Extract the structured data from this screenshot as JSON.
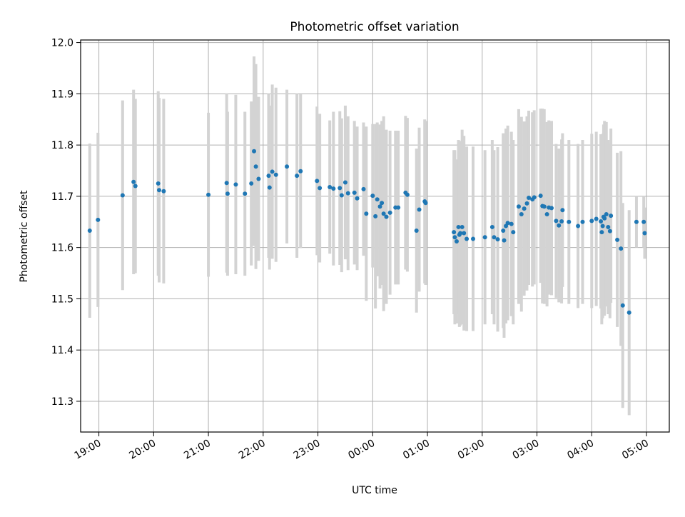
{
  "chart_data": {
    "type": "scatter",
    "title": "Photometric offset variation",
    "xlabel": "UTC time",
    "ylabel": "Photometric offset",
    "xlim": [
      "18:40",
      "05:25"
    ],
    "ylim": [
      11.24,
      12.005
    ],
    "x_ticks": [
      "19:00",
      "20:00",
      "21:00",
      "22:00",
      "23:00",
      "00:00",
      "01:00",
      "02:00",
      "03:00",
      "04:00",
      "05:00"
    ],
    "y_ticks": [
      11.3,
      11.4,
      11.5,
      11.6,
      11.7,
      11.8,
      11.9,
      12.0
    ],
    "grid": true,
    "point_color": "#1f77b4",
    "errorbar_color": "#d3d3d3",
    "series": [
      {
        "x": [
          "18:50",
          "18:59",
          "19:26",
          "19:38",
          "19:40",
          "20:05",
          "20:06",
          "20:11",
          "21:00",
          "21:20",
          "21:21",
          "21:30",
          "21:40",
          "21:47",
          "21:50",
          "21:52",
          "21:55",
          "22:06",
          "22:07",
          "22:10",
          "22:14",
          "22:26",
          "22:37",
          "22:41",
          "22:59",
          "23:02",
          "23:13",
          "23:17",
          "23:24",
          "23:26",
          "23:30",
          "23:33",
          "23:40",
          "23:43",
          "23:50",
          "23:53",
          "24:00",
          "24:03",
          "24:05",
          "24:08",
          "24:10",
          "24:12",
          "24:15",
          "24:19",
          "24:25",
          "24:28",
          "24:36",
          "24:38",
          "24:48",
          "24:51",
          "24:57",
          "24:58",
          "25:29",
          "25:30",
          "25:32",
          "25:34",
          "25:35",
          "25:36",
          "25:38",
          "25:40",
          "25:43",
          "25:50",
          "26:03",
          "26:11",
          "26:13",
          "26:17",
          "26:23",
          "26:24",
          "26:26",
          "26:28",
          "26:32",
          "26:34",
          "26:40",
          "26:43",
          "26:46",
          "26:49",
          "26:51",
          "26:55",
          "26:57",
          "27:04",
          "27:06",
          "27:08",
          "27:11",
          "27:13",
          "27:16",
          "27:21",
          "27:24",
          "27:27",
          "27:28",
          "27:35",
          "27:45",
          "27:50",
          "28:00",
          "28:05",
          "28:10",
          "28:11",
          "28:12",
          "28:13",
          "28:14",
          "28:16",
          "28:18",
          "28:20",
          "28:21",
          "28:28",
          "28:32",
          "28:34",
          "28:41",
          "28:49",
          "28:57",
          "28:58"
        ],
        "y": [
          11.633,
          11.654,
          11.702,
          11.728,
          11.72,
          11.725,
          11.712,
          11.71,
          11.703,
          11.726,
          11.705,
          11.723,
          11.705,
          11.725,
          11.788,
          11.758,
          11.734,
          11.74,
          11.717,
          11.748,
          11.742,
          11.758,
          11.74,
          11.749,
          11.73,
          11.716,
          11.718,
          11.715,
          11.716,
          11.702,
          11.727,
          11.706,
          11.707,
          11.696,
          11.714,
          11.666,
          11.701,
          11.661,
          11.694,
          11.68,
          11.687,
          11.666,
          11.66,
          11.668,
          11.678,
          11.678,
          11.707,
          11.703,
          11.633,
          11.674,
          11.69,
          11.687,
          11.63,
          11.62,
          11.612,
          11.64,
          11.625,
          11.628,
          11.64,
          11.628,
          11.617,
          11.617,
          11.62,
          11.64,
          11.62,
          11.616,
          11.633,
          11.614,
          11.642,
          11.648,
          11.646,
          11.63,
          11.68,
          11.665,
          11.676,
          11.686,
          11.697,
          11.694,
          11.698,
          11.701,
          11.681,
          11.68,
          11.665,
          11.678,
          11.677,
          11.652,
          11.643,
          11.651,
          11.673,
          11.65,
          11.642,
          11.65,
          11.652,
          11.656,
          11.651,
          11.63,
          11.642,
          11.66,
          11.657,
          11.665,
          11.64,
          11.632,
          11.662,
          11.615,
          11.598,
          11.487,
          11.473,
          11.65,
          11.65,
          11.628
        ],
        "yerr": [
          0.17,
          0.17,
          0.185,
          0.18,
          0.17,
          0.18,
          0.18,
          0.18,
          0.16,
          0.175,
          0.16,
          0.175,
          0.16,
          0.16,
          0.185,
          0.2,
          0.16,
          0.16,
          0.16,
          0.17,
          0.17,
          0.15,
          0.16,
          0.15,
          0.145,
          0.145,
          0.13,
          0.15,
          0.15,
          0.15,
          0.15,
          0.15,
          0.14,
          0.14,
          0.13,
          0.17,
          0.14,
          0.18,
          0.15,
          0.16,
          0.16,
          0.19,
          0.17,
          0.16,
          0.15,
          0.15,
          0.15,
          0.15,
          0.16,
          0.16,
          0.16,
          0.16,
          0.16,
          0.17,
          0.16,
          0.17,
          0.18,
          0.18,
          0.19,
          0.19,
          0.18,
          0.18,
          0.17,
          0.17,
          0.17,
          0.18,
          0.19,
          0.19,
          0.19,
          0.19,
          0.18,
          0.18,
          0.19,
          0.19,
          0.17,
          0.17,
          0.17,
          0.17,
          0.17,
          0.17,
          0.19,
          0.19,
          0.18,
          0.17,
          0.17,
          0.15,
          0.15,
          0.16,
          0.15,
          0.16,
          0.16,
          0.16,
          0.17,
          0.17,
          0.17,
          0.18,
          0.18,
          0.18,
          0.19,
          0.18,
          0.17,
          0.17,
          0.17,
          0.17,
          0.19,
          0.2,
          0.2,
          0.05,
          0.05,
          0.05
        ]
      }
    ]
  }
}
